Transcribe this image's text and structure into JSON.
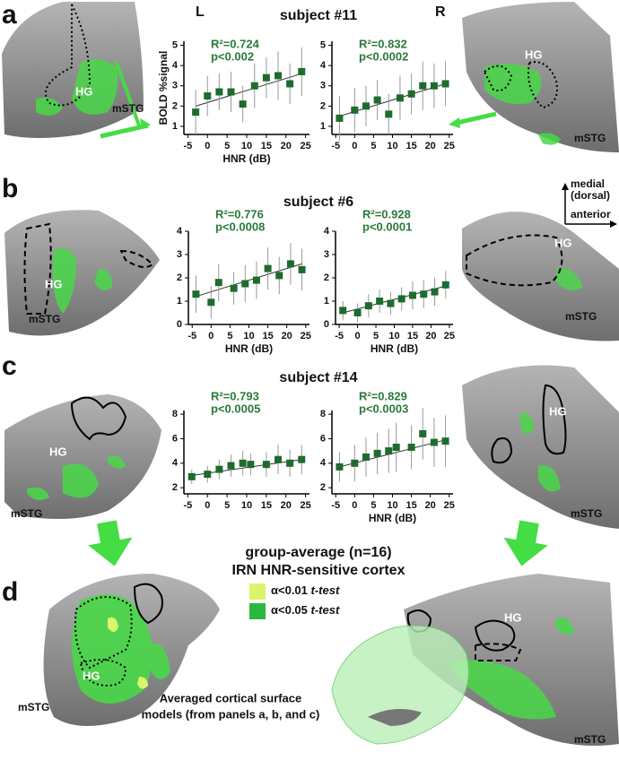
{
  "panel_letters": [
    "a",
    "b",
    "c",
    "d"
  ],
  "hemispheres": [
    "L",
    "R"
  ],
  "subjects": [
    "subject #11",
    "subject #6",
    "subject #14"
  ],
  "regions": {
    "hg": "HG",
    "mstg": "mSTG"
  },
  "orientation": [
    "medial",
    "(dorsal)",
    "anterior"
  ],
  "group": {
    "title": [
      "group-average (n=16)",
      "IRN HNR-sensitive cortex"
    ],
    "legend": [
      {
        "label": "α<0.01",
        "test": "t-test",
        "color": "#d9f56b"
      },
      {
        "label": "α<0.05",
        "test": "t-test",
        "color": "#2db83d"
      }
    ],
    "caption": [
      "Averaged cortical surface",
      "models (from panels a, b, and c)"
    ]
  },
  "chart_data": [
    {
      "type": "scatter",
      "x": [
        -3,
        0,
        3,
        6,
        9,
        12,
        15,
        18,
        21,
        24
      ],
      "values": [
        1.7,
        2.5,
        2.7,
        2.7,
        2.1,
        3.0,
        3.4,
        3.5,
        3.1,
        3.7
      ],
      "errors": [
        1.1,
        1.0,
        0.9,
        1.0,
        0.9,
        1.1,
        1.0,
        1.2,
        1.0,
        1.2
      ],
      "fit": {
        "x": [
          -3,
          24
        ],
        "y": [
          2.0,
          3.6
        ]
      },
      "annotation": [
        "R²=0.724",
        "p<0.002"
      ],
      "color": "#1e6b2e",
      "xlim": [
        -6,
        26
      ],
      "xticks": [
        -5,
        0,
        5,
        10,
        15,
        20,
        25
      ],
      "ylim": [
        0.6,
        5.2
      ],
      "yticks": [
        1,
        2,
        3,
        4,
        5
      ],
      "xlabel": "HNR (dB)",
      "ylabel": "BOLD %signal"
    },
    {
      "type": "scatter",
      "x": [
        -4,
        0,
        3,
        6,
        9,
        12,
        15,
        18,
        21,
        24
      ],
      "values": [
        1.4,
        1.8,
        2.0,
        2.3,
        1.6,
        2.4,
        2.6,
        3.0,
        3.0,
        3.1
      ],
      "errors": [
        1.1,
        1.1,
        1.0,
        1.0,
        1.0,
        1.1,
        1.0,
        1.2,
        1.1,
        1.1
      ],
      "fit": {
        "x": [
          -4,
          24
        ],
        "y": [
          1.5,
          3.1
        ]
      },
      "annotation": [
        "R²=0.832",
        "p<0.0002"
      ],
      "color": "#1e6b2e",
      "xlim": [
        -6,
        26
      ],
      "xticks": [
        -5,
        0,
        5,
        10,
        15,
        20,
        25
      ],
      "ylim": [
        0.6,
        5.2
      ],
      "yticks": [
        1,
        2,
        3,
        4,
        5
      ]
    },
    {
      "type": "scatter",
      "x": [
        -4,
        0,
        2,
        6,
        9,
        12,
        15,
        18,
        21,
        24
      ],
      "values": [
        1.3,
        0.95,
        1.8,
        1.55,
        1.75,
        1.9,
        2.4,
        2.1,
        2.6,
        2.35
      ],
      "errors": [
        0.8,
        0.7,
        0.8,
        0.7,
        0.8,
        0.8,
        0.9,
        0.8,
        0.9,
        0.9
      ],
      "fit": {
        "x": [
          -4,
          24
        ],
        "y": [
          1.2,
          2.6
        ]
      },
      "annotation": [
        "R²=0.776",
        "p<0.0008"
      ],
      "color": "#1e6b2e",
      "xlim": [
        -6,
        26
      ],
      "xticks": [
        -5,
        0,
        5,
        10,
        15,
        20,
        25
      ],
      "ylim": [
        0,
        4
      ],
      "yticks": [
        0,
        1,
        2,
        3,
        4
      ],
      "xlabel": "HNR (dB)"
    },
    {
      "type": "scatter",
      "x": [
        -4,
        0,
        3,
        6,
        9,
        12,
        15,
        18,
        21,
        24
      ],
      "values": [
        0.6,
        0.5,
        0.8,
        1.0,
        0.9,
        1.1,
        1.25,
        1.3,
        1.4,
        1.7
      ],
      "errors": [
        0.4,
        0.4,
        0.5,
        0.5,
        0.5,
        0.5,
        0.6,
        0.6,
        0.6,
        0.6
      ],
      "fit": {
        "x": [
          -4,
          24
        ],
        "y": [
          0.5,
          1.65
        ]
      },
      "annotation": [
        "R²=0.928",
        "p<0.0001"
      ],
      "color": "#1e6b2e",
      "xlim": [
        -6,
        26
      ],
      "xticks": [
        -5,
        0,
        5,
        10,
        15,
        20,
        25
      ],
      "ylim": [
        0,
        4
      ],
      "yticks": [
        0,
        1,
        2,
        3,
        4
      ],
      "xlabel": "HNR (dB)"
    },
    {
      "type": "scatter",
      "x": [
        -4,
        0,
        3,
        6,
        9,
        11,
        15,
        18,
        21,
        24
      ],
      "values": [
        2.9,
        3.1,
        3.5,
        3.8,
        4.0,
        3.9,
        3.9,
        4.3,
        4.0,
        4.3
      ],
      "errors": [
        0.6,
        0.7,
        0.8,
        0.9,
        1.0,
        0.9,
        1.0,
        1.2,
        1.1,
        1.2
      ],
      "fit": {
        "x": [
          -4,
          24
        ],
        "y": [
          3.0,
          4.3
        ]
      },
      "annotation": [
        "R²=0.793",
        "p<0.0005"
      ],
      "color": "#1e6b2e",
      "xlim": [
        -6,
        26
      ],
      "xticks": [
        -5,
        0,
        5,
        10,
        15,
        20,
        25
      ],
      "ylim": [
        1.5,
        8.3
      ],
      "yticks": [
        2,
        4,
        6,
        8
      ]
    },
    {
      "type": "scatter",
      "x": [
        -4,
        0,
        3,
        6,
        9,
        11,
        15,
        18,
        21,
        24
      ],
      "values": [
        3.7,
        4.0,
        4.5,
        4.8,
        5.0,
        5.3,
        5.3,
        6.4,
        5.7,
        5.8
      ],
      "errors": [
        1.2,
        1.5,
        1.6,
        1.7,
        1.8,
        2.0,
        1.8,
        2.1,
        2.0,
        2.1
      ],
      "fit": {
        "x": [
          -4,
          24
        ],
        "y": [
          3.7,
          5.9
        ]
      },
      "annotation": [
        "R²=0.829",
        "p<0.0003"
      ],
      "color": "#1e6b2e",
      "xlim": [
        -6,
        26
      ],
      "xticks": [
        -5,
        0,
        5,
        10,
        15,
        20,
        25
      ],
      "ylim": [
        1.5,
        8.3
      ],
      "yticks": [
        2,
        4,
        6,
        8
      ],
      "xlabel": "HNR (dB)"
    }
  ]
}
